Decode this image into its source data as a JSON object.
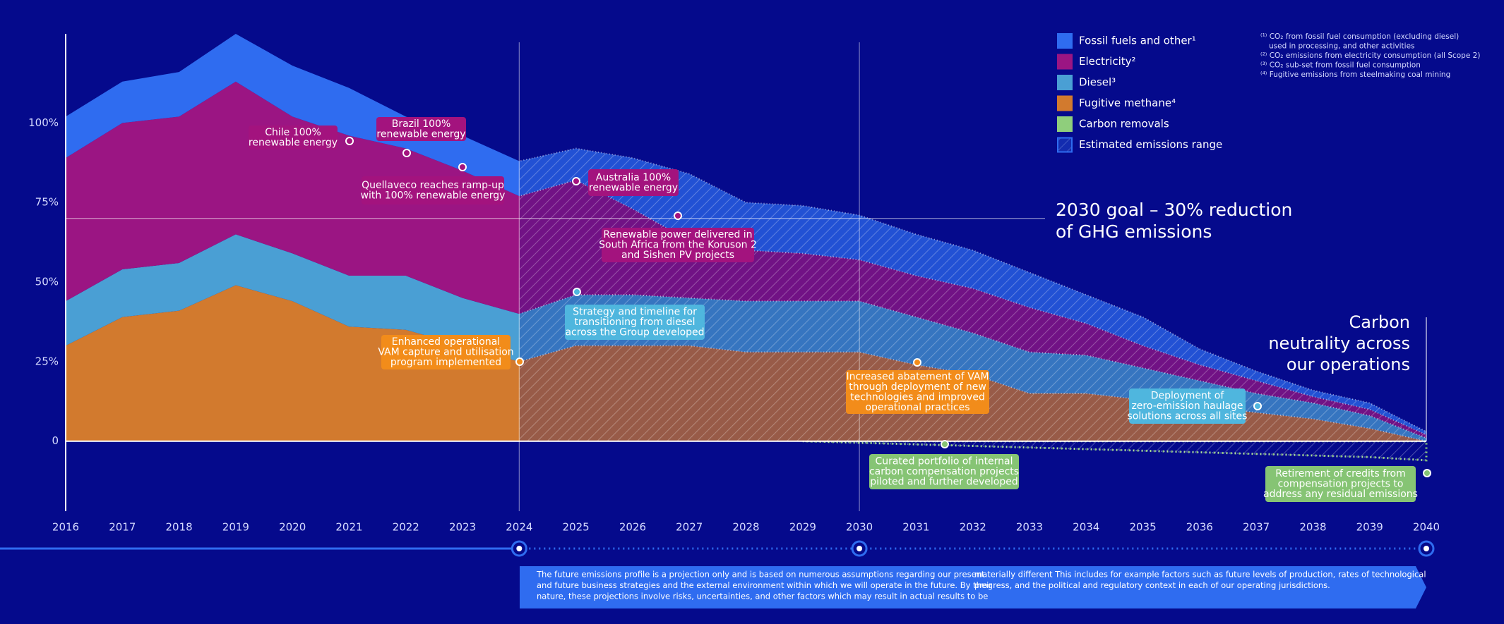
{
  "chart_data": {
    "type": "stacked_area",
    "x": [
      2016,
      2017,
      2018,
      2019,
      2020,
      2021,
      2022,
      2023,
      2024,
      2025,
      2026,
      2027,
      2028,
      2029,
      2030,
      2031,
      2032,
      2033,
      2034,
      2035,
      2036,
      2037,
      2038,
      2039,
      2040
    ],
    "xlim": [
      2016,
      2040
    ],
    "ylim": [
      -22,
      128
    ],
    "yticks": [
      0,
      {
        "value": 25,
        "label": "25%"
      },
      {
        "value": 50,
        "label": "50%"
      },
      {
        "value": 75,
        "label": "75%"
      },
      {
        "value": 100,
        "label": "100%"
      }
    ],
    "series": [
      {
        "name": "Fossil fuels and other¹",
        "color": "#2f6cf0",
        "values": [
          13,
          13,
          14,
          15,
          16,
          15,
          10,
          11,
          11,
          10,
          16,
          21,
          15,
          15,
          14,
          13,
          12,
          11,
          9,
          9,
          5,
          3,
          2,
          2,
          1
        ]
      },
      {
        "name": "Electricity²",
        "color": "#9b1583",
        "values": [
          45,
          46,
          46,
          48,
          43,
          44,
          40,
          40,
          37,
          36,
          27,
          18,
          16,
          15,
          13,
          13,
          14,
          14,
          10,
          7,
          5,
          4,
          2,
          2,
          1
        ]
      },
      {
        "name": "Diesel³",
        "color": "#4a9fd4",
        "values": [
          14,
          15,
          15,
          16,
          15,
          16,
          17,
          15,
          15,
          16,
          16,
          15,
          16,
          16,
          16,
          15,
          13,
          13,
          12,
          10,
          8,
          6,
          5,
          4,
          1
        ]
      },
      {
        "name": "Fugitive methane⁴",
        "color": "#d27a2e",
        "values": [
          30,
          39,
          41,
          49,
          44,
          36,
          35,
          30,
          25,
          30,
          30,
          30,
          28,
          28,
          28,
          24,
          21,
          15,
          15,
          13,
          11,
          9,
          7,
          4,
          0
        ]
      },
      {
        "name": "Carbon removals",
        "color": "#8fce7c",
        "values": [
          null,
          null,
          null,
          null,
          null,
          null,
          null,
          null,
          null,
          null,
          null,
          null,
          null,
          0,
          -0.5,
          -1,
          -1.5,
          -2,
          -2.5,
          -3,
          -3.5,
          -4,
          -4.5,
          -5,
          -6
        ]
      }
    ],
    "range_label": "Estimated emissions range",
    "goal_value": 70,
    "goal_text": [
      "2030 goal – 30% reduction",
      "of GHG emissions"
    ],
    "neutral_text": [
      "Carbon",
      "neutrality across",
      "our operations"
    ],
    "annotations": [
      {
        "text": [
          "Chile 100%",
          "renewable energy"
        ],
        "color": "#a3137e"
      },
      {
        "text": [
          "Brazil 100%",
          "renewable energy"
        ],
        "color": "#a3137e"
      },
      {
        "text": [
          "Quellaveco reaches ramp-up",
          "with 100% renewable energy"
        ],
        "color": "#a3137e"
      },
      {
        "text": [
          "Australia 100%",
          "renewable energy"
        ],
        "color": "#a3137e"
      },
      {
        "text": [
          "Renewable power delivered in",
          "South Africa from the Koruson 2",
          "and Sishen PV projects"
        ],
        "color": "#a3137e"
      },
      {
        "text": [
          "Strategy and timeline for",
          "transitioning from diesel",
          "across the Group developed"
        ],
        "color": "#4fb6de"
      },
      {
        "text": [
          "Enhanced operational",
          "VAM capture and utilisation",
          "program implemented"
        ],
        "color": "#f28c1a"
      },
      {
        "text": [
          "Increased abatement of VAM",
          "through deployment of new",
          "technologies and improved",
          "operational practices"
        ],
        "color": "#f28c1a"
      },
      {
        "text": [
          "Curated portfolio of internal",
          "carbon compensation projects",
          "piloted and further developed"
        ],
        "color": "#86c474"
      },
      {
        "text": [
          "Deployment of",
          "zero-emission haulage",
          "solutions across all sites"
        ],
        "color": "#4fb6de"
      },
      {
        "text": [
          "Retirement of credits from",
          "compensation projects to",
          "address any residual emissions"
        ],
        "color": "#86c474"
      }
    ]
  },
  "footnotes": [
    [
      "⁽¹⁾ CO₂ from fossil fuel consumption (excluding diesel)",
      "used in processing, and other activities"
    ],
    [
      "⁽²⁾ CO₂ emissions from electricity consumption (all Scope 2)"
    ],
    [
      "⁽³⁾ CO₂ sub-set from fossil fuel consumption"
    ],
    [
      "⁽⁴⁾ Fugitive emissions from steelmaking coal mining"
    ]
  ],
  "disclaimer": [
    [
      "The future emissions profile is a projection only and is based on numerous assumptions regarding our present",
      "and future business strategies and the external environment within which we will operate in the future. By their",
      "nature, these projections involve risks, uncertainties, and other factors which may result in actual results to be"
    ],
    [
      "materially different This includes for example factors such as future levels of production, rates of technological",
      "progress, and the political and regulatory context in each of our operating jurisdictions."
    ]
  ]
}
